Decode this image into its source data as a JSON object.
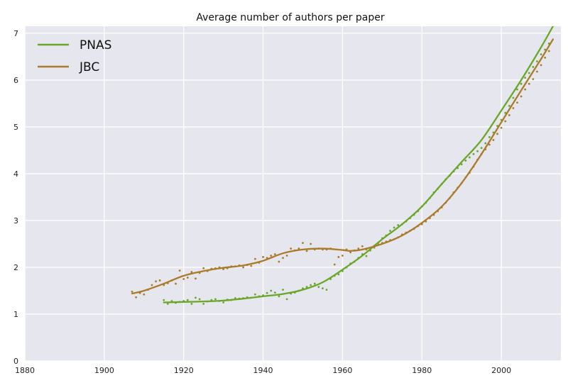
{
  "chart_data": {
    "type": "line",
    "title": "Average number of authors per paper",
    "xlabel": "",
    "ylabel": "",
    "xlim": [
      1880,
      2015
    ],
    "ylim": [
      0,
      7.15
    ],
    "x_ticks": [
      1880,
      1900,
      1920,
      1940,
      1960,
      1980,
      2000
    ],
    "y_ticks": [
      0,
      1,
      2,
      3,
      4,
      5,
      6,
      7
    ],
    "grid": true,
    "legend_position": "top-left",
    "background_color": "#e5e6ee",
    "series": [
      {
        "name": "PNAS",
        "color": "#6aa728",
        "smooth": {
          "x": [
            1915,
            1920,
            1925,
            1930,
            1935,
            1940,
            1945,
            1950,
            1955,
            1960,
            1965,
            1970,
            1975,
            1980,
            1985,
            1990,
            1995,
            2000,
            2005,
            2010,
            2013
          ],
          "y": [
            1.25,
            1.26,
            1.27,
            1.29,
            1.33,
            1.38,
            1.43,
            1.52,
            1.68,
            1.95,
            2.25,
            2.6,
            2.92,
            3.3,
            3.78,
            4.25,
            4.72,
            5.35,
            6.0,
            6.7,
            7.15
          ]
        },
        "points": {
          "x": [
            1915,
            1916,
            1917,
            1918,
            1919,
            1920,
            1921,
            1922,
            1923,
            1924,
            1925,
            1926,
            1927,
            1928,
            1929,
            1930,
            1931,
            1932,
            1933,
            1934,
            1935,
            1936,
            1937,
            1938,
            1939,
            1940,
            1941,
            1942,
            1943,
            1944,
            1945,
            1946,
            1947,
            1948,
            1949,
            1950,
            1951,
            1952,
            1953,
            1954,
            1955,
            1956,
            1957,
            1958,
            1959,
            1960,
            1961,
            1962,
            1963,
            1964,
            1965,
            1966,
            1967,
            1968,
            1969,
            1970,
            1971,
            1972,
            1973,
            1974,
            1975,
            1976,
            1977,
            1978,
            1979,
            1980,
            1981,
            1982,
            1983,
            1984,
            1985,
            1986,
            1987,
            1988,
            1989,
            1990,
            1991,
            1992,
            1993,
            1994,
            1995,
            1996,
            1997,
            1998,
            1999,
            2000,
            2001,
            2002,
            2003,
            2004,
            2005,
            2006,
            2007,
            2008,
            2009,
            2010,
            2011,
            2012
          ],
          "y": [
            1.3,
            1.22,
            1.28,
            1.24,
            1.26,
            1.28,
            1.3,
            1.22,
            1.35,
            1.32,
            1.22,
            1.27,
            1.3,
            1.32,
            1.28,
            1.25,
            1.31,
            1.3,
            1.34,
            1.33,
            1.34,
            1.36,
            1.35,
            1.42,
            1.38,
            1.4,
            1.45,
            1.5,
            1.46,
            1.38,
            1.52,
            1.32,
            1.44,
            1.46,
            1.5,
            1.55,
            1.58,
            1.62,
            1.65,
            1.58,
            1.55,
            1.52,
            1.75,
            1.82,
            1.85,
            1.92,
            2.0,
            2.08,
            2.12,
            2.2,
            2.28,
            2.24,
            2.36,
            2.42,
            2.52,
            2.62,
            2.68,
            2.78,
            2.85,
            2.9,
            2.92,
            2.98,
            3.05,
            3.12,
            3.2,
            3.3,
            3.38,
            3.48,
            3.6,
            3.68,
            3.78,
            3.88,
            3.96,
            4.05,
            4.12,
            4.2,
            4.28,
            4.35,
            4.42,
            4.48,
            4.55,
            4.65,
            4.78,
            4.88,
            5.02,
            5.15,
            5.3,
            5.45,
            5.62,
            5.8,
            5.92,
            6.05,
            6.15,
            6.28,
            6.4,
            6.55,
            6.65,
            6.78
          ]
        }
      },
      {
        "name": "JBC",
        "color": "#ab7b2a",
        "smooth": {
          "x": [
            1907,
            1910,
            1915,
            1920,
            1925,
            1930,
            1935,
            1940,
            1945,
            1950,
            1955,
            1960,
            1962,
            1965,
            1970,
            1975,
            1980,
            1985,
            1990,
            1995,
            2000,
            2005,
            2010,
            2013
          ],
          "y": [
            1.44,
            1.5,
            1.65,
            1.82,
            1.92,
            1.99,
            2.04,
            2.14,
            2.3,
            2.38,
            2.4,
            2.37,
            2.35,
            2.38,
            2.5,
            2.68,
            2.95,
            3.3,
            3.8,
            4.42,
            5.1,
            5.78,
            6.45,
            6.87
          ]
        },
        "points": {
          "x": [
            1907,
            1908,
            1909,
            1910,
            1911,
            1912,
            1913,
            1914,
            1915,
            1916,
            1917,
            1918,
            1919,
            1920,
            1921,
            1922,
            1923,
            1924,
            1925,
            1926,
            1927,
            1928,
            1929,
            1930,
            1931,
            1932,
            1933,
            1934,
            1935,
            1936,
            1937,
            1938,
            1939,
            1940,
            1941,
            1942,
            1943,
            1944,
            1945,
            1946,
            1947,
            1948,
            1949,
            1950,
            1951,
            1952,
            1953,
            1954,
            1955,
            1956,
            1957,
            1958,
            1959,
            1960,
            1961,
            1962,
            1963,
            1964,
            1965,
            1966,
            1967,
            1968,
            1969,
            1970,
            1971,
            1972,
            1973,
            1974,
            1975,
            1976,
            1977,
            1978,
            1979,
            1980,
            1981,
            1982,
            1983,
            1984,
            1985,
            1986,
            1987,
            1988,
            1989,
            1990,
            1991,
            1992,
            1993,
            1994,
            1995,
            1996,
            1997,
            1998,
            1999,
            2000,
            2001,
            2002,
            2003,
            2004,
            2005,
            2006,
            2007,
            2008,
            2009,
            2010,
            2011,
            2012
          ],
          "y": [
            1.48,
            1.36,
            1.45,
            1.42,
            1.52,
            1.62,
            1.7,
            1.72,
            1.62,
            1.66,
            1.72,
            1.65,
            1.93,
            1.75,
            1.78,
            1.9,
            1.76,
            1.88,
            1.98,
            1.92,
            1.97,
            1.98,
            2.0,
            1.96,
            1.98,
            2.02,
            2.02,
            2.04,
            2.0,
            2.05,
            2.03,
            2.18,
            2.1,
            2.22,
            2.2,
            2.25,
            2.28,
            2.12,
            2.2,
            2.25,
            2.4,
            2.36,
            2.4,
            2.52,
            2.35,
            2.5,
            2.38,
            2.4,
            2.38,
            2.38,
            2.4,
            2.06,
            2.22,
            2.25,
            2.38,
            2.32,
            2.36,
            2.4,
            2.45,
            2.38,
            2.42,
            2.46,
            2.48,
            2.52,
            2.55,
            2.58,
            2.6,
            2.64,
            2.7,
            2.74,
            2.78,
            2.82,
            2.88,
            2.92,
            2.98,
            3.05,
            3.12,
            3.2,
            3.28,
            3.38,
            3.48,
            3.6,
            3.7,
            3.8,
            3.92,
            4.02,
            4.15,
            4.3,
            4.42,
            4.52,
            4.62,
            4.72,
            4.85,
            4.98,
            5.12,
            5.25,
            5.4,
            5.52,
            5.65,
            5.8,
            5.92,
            6.02,
            6.18,
            6.32,
            6.48,
            6.62
          ]
        }
      }
    ]
  }
}
